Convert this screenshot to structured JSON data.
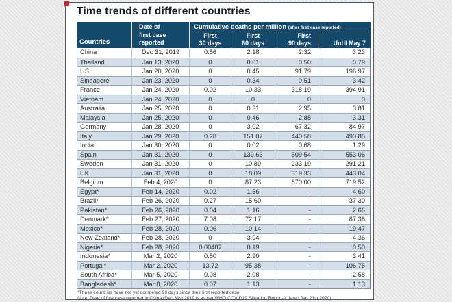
{
  "colors": {
    "header_bg": "#164a6d",
    "row_stripe": "#d3dee8",
    "corner_marker_red": "#c2272c"
  },
  "title": "Time trends of different countries",
  "table_header": {
    "countries_label": "Countries",
    "date_col_lines": [
      "Date of",
      "first case",
      "reported"
    ],
    "group_title": "Cumulative deaths per million",
    "group_note": "(after first case reported)",
    "sub_columns": [
      {
        "line1": "First",
        "line2": "30 days"
      },
      {
        "line1": "First",
        "line2": "60 days"
      },
      {
        "line1": "First",
        "line2": "90 days"
      },
      {
        "line1": "",
        "line2": "Until May 7"
      }
    ]
  },
  "chart_data": {
    "type": "table",
    "title": "Time trends of different countries",
    "columns": [
      "Countries",
      "Date of first case reported",
      "First 30 days",
      "First 60 days",
      "First 90 days",
      "Until May 7"
    ],
    "group_header": "Cumulative deaths per million (after first case reported)",
    "rows": [
      [
        "China",
        "Dec 31, 2019",
        "0.56",
        "2.18",
        "2.32",
        "3.23"
      ],
      [
        "Thailand",
        "Jan 13, 2020",
        "0",
        "0.01",
        "0.50",
        "0.79"
      ],
      [
        "US",
        "Jan 20, 2020",
        "0",
        "0.45",
        "91.79",
        "196.97"
      ],
      [
        "Singapore",
        "Jan 23, 2020",
        "0",
        "0.34",
        "0.51",
        "3.42"
      ],
      [
        "France",
        "Jan 24, 2020",
        "0.02",
        "10.33",
        "318.19",
        "394.91"
      ],
      [
        "Vietnam",
        "Jan 24, 2020",
        "0",
        "0",
        "0",
        "0"
      ],
      [
        "Australia",
        "Jan 25, 2020",
        "0",
        "0.31",
        "2.95",
        "3.81"
      ],
      [
        "Malaysia",
        "Jan 25, 2020",
        "0",
        "0.46",
        "2.88",
        "3.31"
      ],
      [
        "Germany",
        "Jan 28, 2020",
        "0",
        "3.02",
        "67.32",
        "84.97"
      ],
      [
        "Italy",
        "Jan 29, 2020",
        "0.28",
        "151.07",
        "440.58",
        "490.85"
      ],
      [
        "India",
        "Jan 30, 2020",
        "0",
        "0.02",
        "0.68",
        "1.29"
      ],
      [
        "Spain",
        "Jan 31, 2020",
        "0",
        "139.63",
        "509.54",
        "553.06"
      ],
      [
        "Sweden",
        "Jan 31, 2020",
        "0",
        "10.89",
        "233.19",
        "291.21"
      ],
      [
        "UK",
        "Jan 31, 2020",
        "0",
        "18.09",
        "319.33",
        "443.04"
      ],
      [
        "Belgium",
        "Feb 4, 2020",
        "0",
        "87.23",
        "670.00",
        "719.52"
      ],
      [
        "Egypt*",
        "Feb 14, 2020",
        "0.02",
        "1.56",
        "-",
        "4.60"
      ],
      [
        "Brazil*",
        "Feb 26, 2020",
        "0.27",
        "15.60",
        "-",
        "37.30"
      ],
      [
        "Pakistan*",
        "Feb 26, 2020",
        "0.04",
        "1.16",
        "-",
        "2.66"
      ],
      [
        "Denmark*",
        "Feb 27, 2020",
        "7.08",
        "72.17",
        "-",
        "87.36"
      ],
      [
        "Mexico*",
        "Feb 28, 2020",
        "0.06",
        "10.14",
        "-",
        "19.47"
      ],
      [
        "New Zealand*",
        "Feb 28, 2020",
        "0",
        "3.94",
        "-",
        "4.36"
      ],
      [
        "Nigeria*",
        "Feb 28, 2020",
        "0.00487",
        "0.19",
        "-",
        "0.50"
      ],
      [
        "Indonesia*",
        "Mar 2, 2020",
        "0.50",
        "2.90",
        "-",
        "3.41"
      ],
      [
        "Portugal*",
        "Mar 2, 2020",
        "13.72",
        "95.38",
        "-",
        "106.76"
      ],
      [
        "South Africa*",
        "Mar 5, 2020",
        "0.08",
        "2.08",
        "-",
        "2.58"
      ],
      [
        "Bangladesh*",
        "Mar 8, 2020",
        "0.07",
        "1.13",
        "-",
        "1.13"
      ]
    ]
  },
  "footnotes": [
    "*These countries have not yet competed 90 days since their first reported case.",
    "Note: Date of first case reported in China (Dec 31st 2019 is as per WHO COVID19 Situation Report-1 dated Jan 21st 2020)"
  ]
}
